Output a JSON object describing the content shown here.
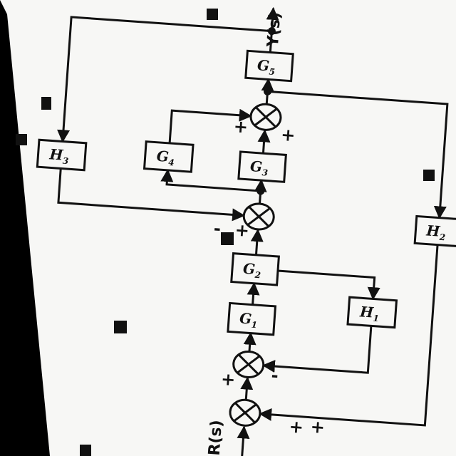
{
  "diagram": {
    "input_label": "R(s)",
    "output_label": "Y(s)",
    "blocks": [
      {
        "id": "G1",
        "letter": "G",
        "sub": "1"
      },
      {
        "id": "G2",
        "letter": "G",
        "sub": "2"
      },
      {
        "id": "G3",
        "letter": "G",
        "sub": "3"
      },
      {
        "id": "G4",
        "letter": "G",
        "sub": "4"
      },
      {
        "id": "G5",
        "letter": "G",
        "sub": "5"
      },
      {
        "id": "H1",
        "letter": "H",
        "sub": "1"
      },
      {
        "id": "H2",
        "letter": "H",
        "sub": "2"
      },
      {
        "id": "H3",
        "letter": "H",
        "sub": "3"
      }
    ],
    "signs": {
      "sj1_input": "+",
      "sj1_h2": "+",
      "sj2_forward": "+",
      "sj2_h1": "-",
      "sj3_forward": "+",
      "sj3_h3": "-",
      "sj4_g3": "+",
      "sj4_g4": "+"
    },
    "colors": {
      "ink": "#111111",
      "paper": "#f7f7f5",
      "background": "#000000"
    }
  }
}
